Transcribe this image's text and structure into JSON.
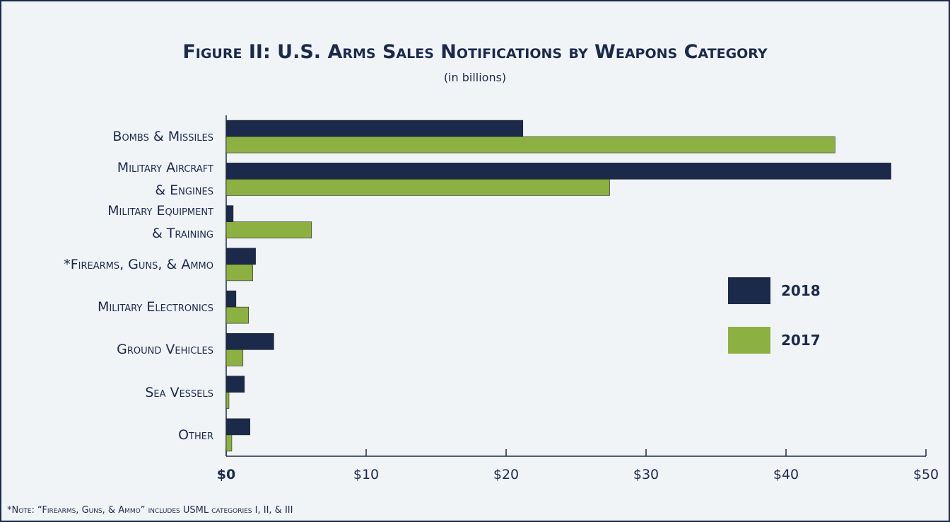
{
  "chart_data": {
    "type": "hbar",
    "title": "Figure II: U.S. Arms Sales Notifications by Weapons Category",
    "subtitle": "(in billions)",
    "categories": [
      "Bombs & Missiles",
      "Military Aircraft\n& Engines",
      "Military Equipment\n& Training",
      "*Firearms, Guns, & Ammo",
      "Military Electronics",
      "Ground Vehicles",
      "Sea Vessels",
      "Other"
    ],
    "series": [
      {
        "name": "2018",
        "color": "#1b2a4a",
        "values": [
          21.2,
          47.5,
          0.5,
          2.1,
          0.7,
          3.4,
          1.3,
          1.7
        ]
      },
      {
        "name": "2017",
        "color": "#8db043",
        "values": [
          43.5,
          27.4,
          6.1,
          1.9,
          1.6,
          1.2,
          0.2,
          0.4
        ]
      }
    ],
    "xlim": [
      0,
      50
    ],
    "xticks": [
      {
        "value": 0,
        "label": "$0"
      },
      {
        "value": 10,
        "label": "$10"
      },
      {
        "value": 20,
        "label": "$20"
      },
      {
        "value": 30,
        "label": "$30"
      },
      {
        "value": 40,
        "label": "$40"
      },
      {
        "value": 50,
        "label": "$50"
      }
    ],
    "legend": "right",
    "note": "*Note: “Firearms, Guns, & Ammo” includes USML categories I, II, & III"
  }
}
